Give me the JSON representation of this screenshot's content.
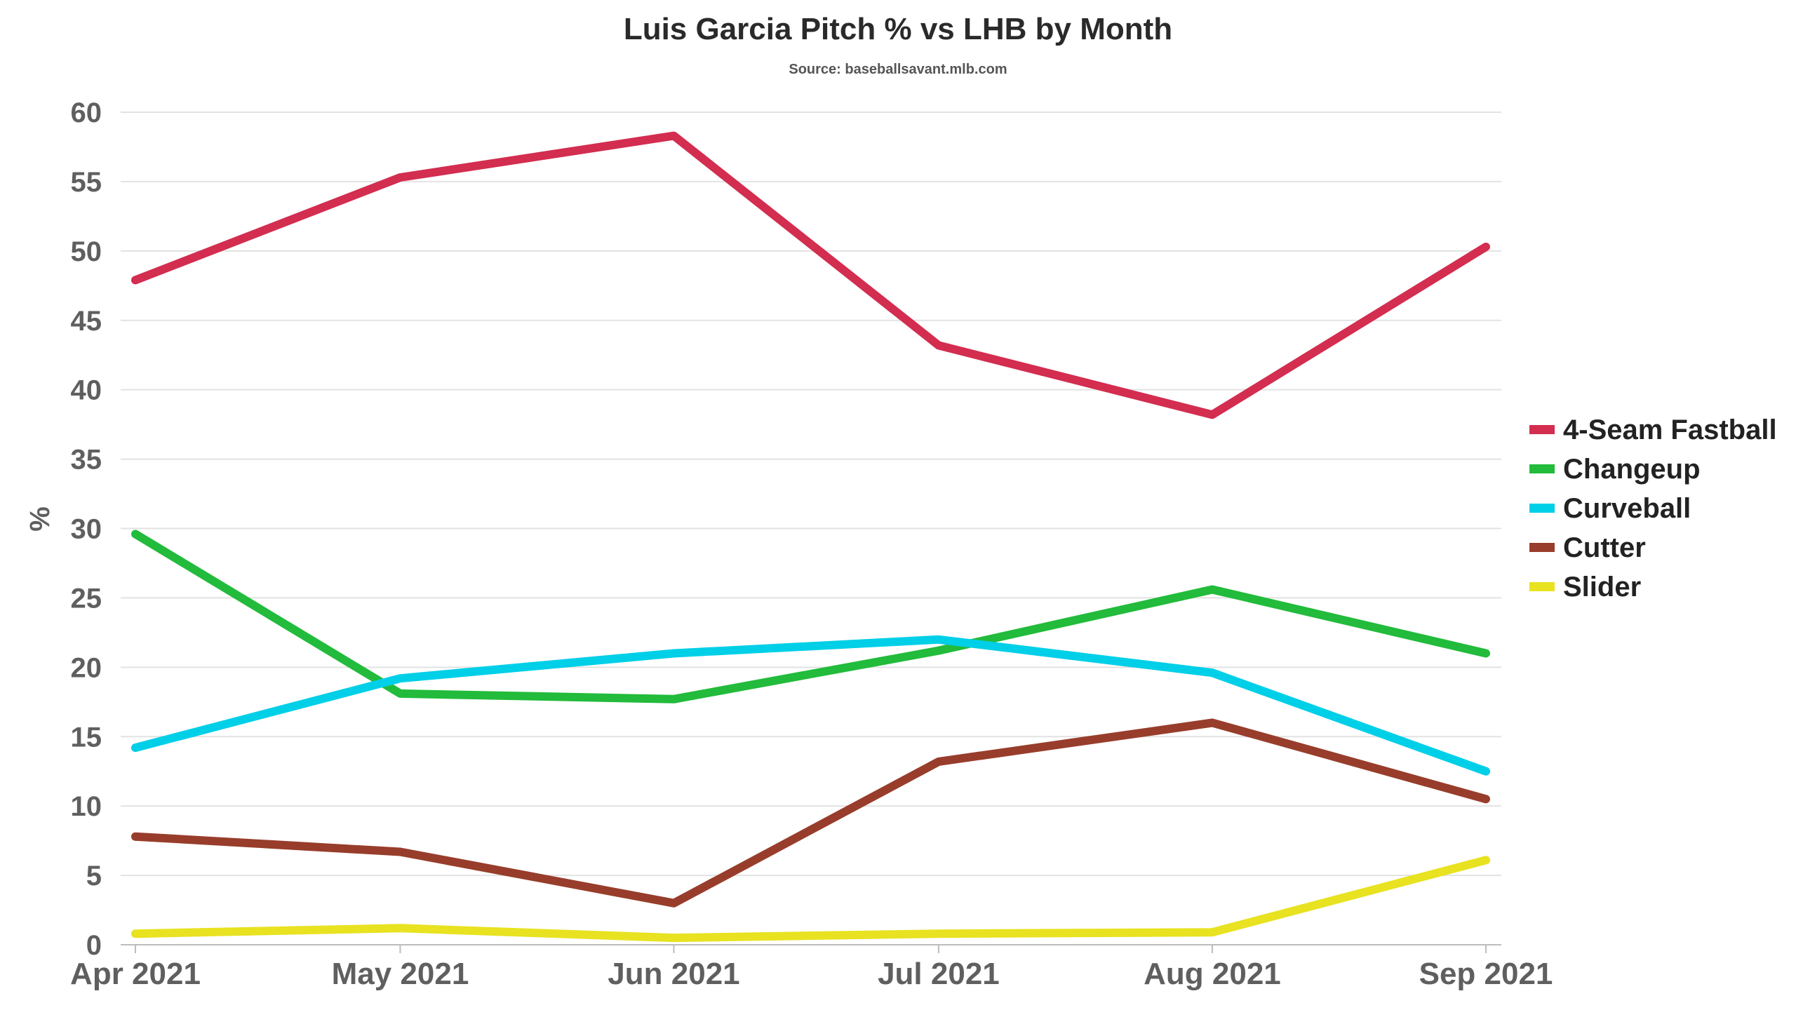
{
  "chart_data": {
    "type": "line",
    "title": "Luis Garcia Pitch % vs LHB by Month",
    "subtitle": "Source: baseballsavant.mlb.com",
    "xlabel": "",
    "ylabel": "%",
    "ylim": [
      0,
      60
    ],
    "yticks": [
      0,
      5,
      10,
      15,
      20,
      25,
      30,
      35,
      40,
      45,
      50,
      55,
      60
    ],
    "x": [
      "2021-04-01",
      "2021-05-01",
      "2021-06-01",
      "2021-07-01",
      "2021-08-01",
      "2021-09-01"
    ],
    "categories": [
      "Apr 2021",
      "May 2021",
      "Jun 2021",
      "Jul 2021",
      "Aug 2021",
      "Sep 2021"
    ],
    "grid": true,
    "legend_position": "right",
    "series": [
      {
        "name": "4-Seam Fastball",
        "color": "#d32d4f",
        "values": [
          47.9,
          55.3,
          58.3,
          43.2,
          38.2,
          50.3
        ]
      },
      {
        "name": "Changeup",
        "color": "#22bb3b",
        "values": [
          29.6,
          18.1,
          17.7,
          21.2,
          25.6,
          21.0
        ]
      },
      {
        "name": "Curveball",
        "color": "#00cfe8",
        "values": [
          14.2,
          19.2,
          21.0,
          22.0,
          19.6,
          12.5
        ]
      },
      {
        "name": "Cutter",
        "color": "#983d2b",
        "values": [
          7.8,
          6.7,
          3.0,
          13.2,
          16.0,
          10.5
        ]
      },
      {
        "name": "Slider",
        "color": "#e8e221",
        "values": [
          0.8,
          1.2,
          0.5,
          0.8,
          0.9,
          6.1
        ]
      }
    ]
  }
}
